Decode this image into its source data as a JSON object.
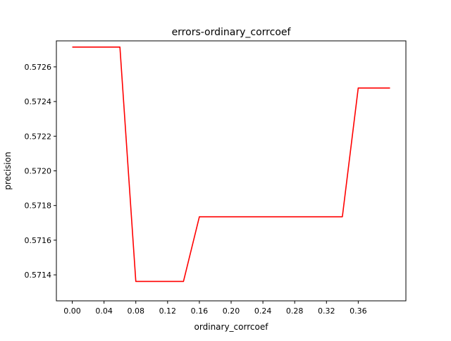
{
  "chart_data": {
    "type": "line",
    "title": "errors-ordinary_corrcoef",
    "xlabel": "ordinary_corrcoef",
    "ylabel": "precision",
    "xlim": [
      -0.02,
      0.42
    ],
    "ylim": [
      0.57125,
      0.57275
    ],
    "x_ticks": [
      0.0,
      0.04,
      0.08,
      0.12,
      0.16,
      0.2,
      0.24,
      0.28,
      0.32,
      0.36
    ],
    "x_tick_labels": [
      "0.00",
      "0.04",
      "0.08",
      "0.12",
      "0.16",
      "0.20",
      "0.24",
      "0.28",
      "0.32",
      "0.36"
    ],
    "y_ticks": [
      0.5714,
      0.5716,
      0.5718,
      0.572,
      0.5722,
      0.5724,
      0.5726
    ],
    "y_tick_labels": [
      "0.5714",
      "0.5716",
      "0.5718",
      "0.5720",
      "0.5722",
      "0.5724",
      "0.5726"
    ],
    "grid": false,
    "series": [
      {
        "color": "#ff0000",
        "x": [
          0.0,
          0.02,
          0.04,
          0.06,
          0.08,
          0.1,
          0.12,
          0.14,
          0.16,
          0.18,
          0.2,
          0.22,
          0.24,
          0.26,
          0.28,
          0.3,
          0.32,
          0.34,
          0.36,
          0.38,
          0.4
        ],
        "y": [
          0.572714,
          0.572714,
          0.572714,
          0.572714,
          0.571362,
          0.571362,
          0.571362,
          0.571362,
          0.571735,
          0.571735,
          0.571735,
          0.571735,
          0.571735,
          0.571735,
          0.571735,
          0.571735,
          0.571735,
          0.571735,
          0.572478,
          0.572478,
          0.572478
        ]
      }
    ]
  }
}
